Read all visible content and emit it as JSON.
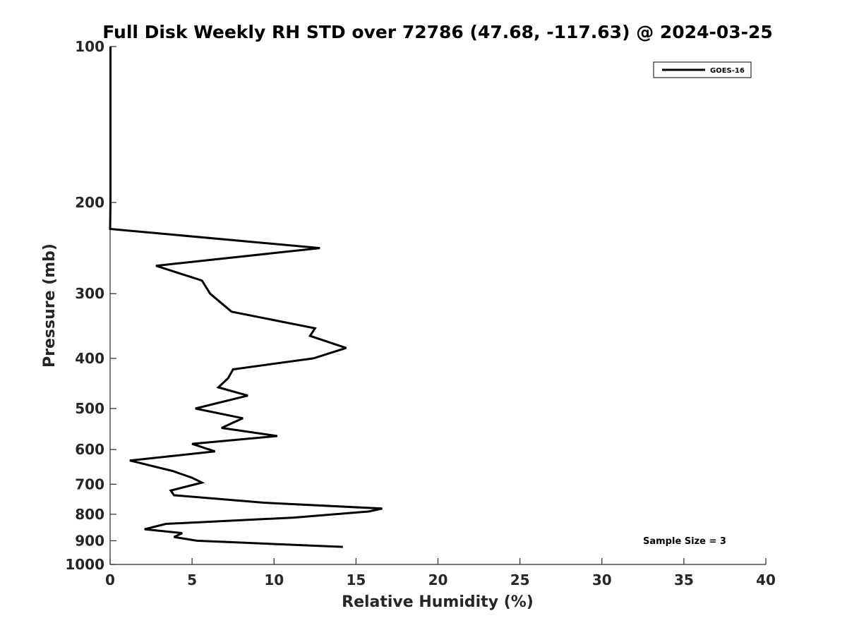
{
  "chart_data": {
    "type": "line",
    "title": "Full Disk Weekly RH STD over 72786 (47.68, -117.63) @ 2024-03-25",
    "xlabel": "Relative Humidity (%)",
    "ylabel": "Pressure (mb)",
    "xlim": [
      0,
      40
    ],
    "ylim": [
      100,
      1000
    ],
    "y_scale": "log",
    "y_inverted": true,
    "grid": false,
    "legend_position": "top-right",
    "x_ticks": [
      0,
      5,
      10,
      15,
      20,
      25,
      30,
      35,
      40
    ],
    "y_ticks": [
      100,
      200,
      300,
      400,
      500,
      600,
      700,
      800,
      900,
      1000
    ],
    "annotation": "Sample Size = 3",
    "series": [
      {
        "name": "GOES-16",
        "color": "#000000",
        "points": [
          [
            0.02,
            100
          ],
          [
            0.02,
            150
          ],
          [
            0.02,
            200
          ],
          [
            0.0,
            225
          ],
          [
            12.8,
            245
          ],
          [
            2.8,
            265
          ],
          [
            5.6,
            283
          ],
          [
            6.1,
            300
          ],
          [
            7.4,
            325
          ],
          [
            12.5,
            350
          ],
          [
            12.2,
            362
          ],
          [
            14.4,
            382
          ],
          [
            12.4,
            400
          ],
          [
            7.5,
            420
          ],
          [
            7.2,
            437
          ],
          [
            6.6,
            455
          ],
          [
            8.4,
            472
          ],
          [
            5.2,
            500
          ],
          [
            8.1,
            522
          ],
          [
            6.8,
            545
          ],
          [
            10.2,
            565
          ],
          [
            5.0,
            585
          ],
          [
            6.4,
            605
          ],
          [
            1.2,
            630
          ],
          [
            3.8,
            660
          ],
          [
            5.0,
            680
          ],
          [
            5.6,
            695
          ],
          [
            3.7,
            720
          ],
          [
            3.9,
            735
          ],
          [
            9.4,
            760
          ],
          [
            16.6,
            780
          ],
          [
            15.8,
            790
          ],
          [
            11.2,
            812
          ],
          [
            3.4,
            835
          ],
          [
            2.1,
            855
          ],
          [
            4.4,
            870
          ],
          [
            3.9,
            885
          ],
          [
            5.3,
            900
          ],
          [
            14.2,
            925
          ]
        ]
      }
    ]
  }
}
